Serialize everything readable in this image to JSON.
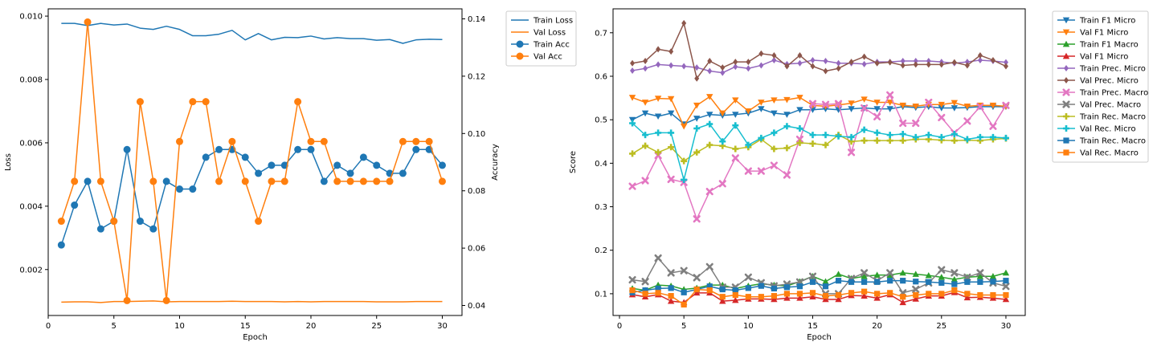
{
  "chart_data": [
    {
      "type": "line",
      "xlabel": "Epoch",
      "ylabel": "Loss",
      "y2label": "Accuracy",
      "xlim": [
        0,
        31.5
      ],
      "ylim": [
        0.00055,
        0.01023
      ],
      "y2lim": [
        0.0365,
        0.1435
      ],
      "xticks": [
        "0",
        "5",
        "10",
        "15",
        "20",
        "25",
        "30"
      ],
      "yticks": [
        "0.002",
        "0.004",
        "0.006",
        "0.008",
        "0.010"
      ],
      "y2ticks": [
        "0.04",
        "0.06",
        "0.08",
        "0.10",
        "0.12",
        "0.14"
      ],
      "legend_position": "upper right, outside plot",
      "x": [
        1,
        2,
        3,
        4,
        5,
        6,
        7,
        8,
        9,
        10,
        11,
        12,
        13,
        14,
        15,
        16,
        17,
        18,
        19,
        20,
        21,
        22,
        23,
        24,
        25,
        26,
        27,
        28,
        29,
        30
      ],
      "series": [
        {
          "name": "Train Loss",
          "axis": "left",
          "color": "#1f77b4",
          "marker": "none",
          "values": [
            0.00977,
            0.00977,
            0.0097,
            0.00977,
            0.00972,
            0.00975,
            0.00962,
            0.00958,
            0.00968,
            0.00958,
            0.00938,
            0.00938,
            0.00943,
            0.00955,
            0.00925,
            0.00945,
            0.00925,
            0.00933,
            0.00932,
            0.00937,
            0.00928,
            0.00932,
            0.00929,
            0.00929,
            0.00924,
            0.00926,
            0.00914,
            0.00925,
            0.00927,
            0.00926
          ]
        },
        {
          "name": "Val Loss",
          "axis": "left",
          "color": "#ff7f0e",
          "marker": "none",
          "values": [
            0.00097,
            0.00098,
            0.00098,
            0.00096,
            0.00099,
            0.00099,
            0.001,
            0.00101,
            0.00098,
            0.00099,
            0.00099,
            0.00099,
            0.00099,
            0.001,
            0.00099,
            0.00099,
            0.00099,
            0.00098,
            0.00099,
            0.00098,
            0.00099,
            0.00099,
            0.00099,
            0.00099,
            0.00098,
            0.00098,
            0.00098,
            0.00099,
            0.00099,
            0.00099
          ]
        },
        {
          "name": "Train Acc",
          "axis": "right",
          "color": "#1f77b4",
          "marker": "circle",
          "values": [
            0.0611,
            0.075,
            0.0833,
            0.0667,
            0.0694,
            0.0944,
            0.0694,
            0.0667,
            0.0833,
            0.0806,
            0.0806,
            0.0917,
            0.0944,
            0.0944,
            0.0917,
            0.0861,
            0.0889,
            0.0889,
            0.0944,
            0.0944,
            0.0833,
            0.0889,
            0.0861,
            0.0917,
            0.0889,
            0.0861,
            0.0861,
            0.0944,
            0.0944,
            0.0889
          ]
        },
        {
          "name": "Val Acc",
          "axis": "right",
          "color": "#ff7f0e",
          "marker": "circle",
          "values": [
            0.0694,
            0.0833,
            0.1389,
            0.0833,
            0.0694,
            0.0417,
            0.1111,
            0.0833,
            0.0417,
            0.0972,
            0.1111,
            0.1111,
            0.0833,
            0.0972,
            0.0833,
            0.0694,
            0.0833,
            0.0833,
            0.1111,
            0.0972,
            0.0972,
            0.0833,
            0.0833,
            0.0833,
            0.0833,
            0.0833,
            0.0972,
            0.0972,
            0.0972,
            0.0833
          ]
        }
      ]
    },
    {
      "type": "line",
      "xlabel": "Epoch",
      "ylabel": "Score",
      "xlim": [
        -0.5,
        31.5
      ],
      "ylim": [
        0.05,
        0.755
      ],
      "xticks": [
        "0",
        "5",
        "10",
        "15",
        "20",
        "25",
        "30"
      ],
      "yticks": [
        "0.1",
        "0.2",
        "0.3",
        "0.4",
        "0.5",
        "0.6",
        "0.7"
      ],
      "legend_position": "upper right, outside plot",
      "x": [
        1,
        2,
        3,
        4,
        5,
        6,
        7,
        8,
        9,
        10,
        11,
        12,
        13,
        14,
        15,
        16,
        17,
        18,
        19,
        20,
        21,
        22,
        23,
        24,
        25,
        26,
        27,
        28,
        29,
        30
      ],
      "series": [
        {
          "name": "Train F1 Micro",
          "color": "#1f77b4",
          "marker": "tri_down",
          "values": [
            0.5,
            0.515,
            0.508,
            0.515,
            0.49,
            0.503,
            0.512,
            0.51,
            0.512,
            0.515,
            0.525,
            0.515,
            0.512,
            0.523,
            0.523,
            0.525,
            0.523,
            0.525,
            0.527,
            0.525,
            0.525,
            0.53,
            0.528,
            0.53,
            0.527,
            0.527,
            0.528,
            0.53,
            0.53,
            0.53
          ]
        },
        {
          "name": "Val F1 Micro",
          "color": "#ff7f0e",
          "marker": "tri_down",
          "values": [
            0.551,
            0.54,
            0.549,
            0.548,
            0.485,
            0.533,
            0.553,
            0.515,
            0.545,
            0.52,
            0.54,
            0.545,
            0.546,
            0.551,
            0.533,
            0.531,
            0.534,
            0.538,
            0.547,
            0.54,
            0.54,
            0.533,
            0.531,
            0.535,
            0.535,
            0.539,
            0.531,
            0.533,
            0.533,
            0.531
          ]
        },
        {
          "name": "Train F1 Macro",
          "color": "#2ca02c",
          "marker": "tri_up",
          "values": [
            0.112,
            0.108,
            0.12,
            0.118,
            0.11,
            0.113,
            0.12,
            0.12,
            0.112,
            0.118,
            0.123,
            0.12,
            0.118,
            0.128,
            0.14,
            0.128,
            0.145,
            0.135,
            0.14,
            0.143,
            0.143,
            0.148,
            0.145,
            0.142,
            0.138,
            0.133,
            0.138,
            0.14,
            0.14,
            0.148
          ]
        },
        {
          "name": "Val F1 Micro",
          "color": "#d62728",
          "marker": "tri_up",
          "values": [
            0.098,
            0.093,
            0.098,
            0.083,
            0.08,
            0.102,
            0.102,
            0.083,
            0.085,
            0.088,
            0.088,
            0.087,
            0.09,
            0.09,
            0.093,
            0.087,
            0.087,
            0.096,
            0.095,
            0.09,
            0.098,
            0.08,
            0.088,
            0.095,
            0.095,
            0.103,
            0.091,
            0.092,
            0.09,
            0.087
          ]
        },
        {
          "name": "Train Prec. Micro",
          "color": "#9467bd",
          "marker": "diamond",
          "values": [
            0.613,
            0.618,
            0.627,
            0.625,
            0.623,
            0.62,
            0.612,
            0.608,
            0.622,
            0.618,
            0.625,
            0.637,
            0.628,
            0.63,
            0.637,
            0.635,
            0.63,
            0.63,
            0.628,
            0.633,
            0.633,
            0.635,
            0.635,
            0.635,
            0.633,
            0.63,
            0.633,
            0.637,
            0.635,
            0.632
          ]
        },
        {
          "name": "Val Prec. Micro",
          "color": "#8c564b",
          "marker": "diamond",
          "values": [
            0.63,
            0.635,
            0.662,
            0.657,
            0.722,
            0.595,
            0.635,
            0.62,
            0.633,
            0.633,
            0.652,
            0.648,
            0.623,
            0.648,
            0.623,
            0.612,
            0.618,
            0.633,
            0.645,
            0.63,
            0.632,
            0.625,
            0.627,
            0.627,
            0.627,
            0.632,
            0.625,
            0.648,
            0.637,
            0.623
          ]
        },
        {
          "name": "Train Prec. Macro",
          "color": "#e377c2",
          "marker": "x",
          "values": [
            0.347,
            0.36,
            0.418,
            0.363,
            0.356,
            0.272,
            0.335,
            0.353,
            0.412,
            0.382,
            0.382,
            0.395,
            0.373,
            0.455,
            0.537,
            0.535,
            0.537,
            0.425,
            0.527,
            0.507,
            0.557,
            0.492,
            0.492,
            0.54,
            0.505,
            0.47,
            0.497,
            0.53,
            0.485,
            0.533
          ]
        },
        {
          "name": "Val Prec. Macro",
          "color": "#7f7f7f",
          "marker": "x",
          "values": [
            0.132,
            0.128,
            0.182,
            0.148,
            0.153,
            0.137,
            0.162,
            0.115,
            0.115,
            0.138,
            0.125,
            0.118,
            0.122,
            0.127,
            0.14,
            0.1,
            0.1,
            0.135,
            0.148,
            0.13,
            0.148,
            0.102,
            0.11,
            0.125,
            0.155,
            0.148,
            0.138,
            0.148,
            0.125,
            0.117
          ]
        },
        {
          "name": "Train Rec. Macro",
          "color": "#bcbd22",
          "marker": "plus",
          "values": [
            0.422,
            0.44,
            0.425,
            0.437,
            0.405,
            0.425,
            0.442,
            0.44,
            0.433,
            0.437,
            0.455,
            0.433,
            0.435,
            0.447,
            0.445,
            0.442,
            0.465,
            0.45,
            0.452,
            0.452,
            0.452,
            0.452,
            0.455,
            0.455,
            0.453,
            0.452,
            0.453,
            0.452,
            0.455,
            0.457
          ]
        },
        {
          "name": "Val Rec. Micro",
          "color": "#17becf",
          "marker": "plus",
          "values": [
            0.492,
            0.465,
            0.47,
            0.47,
            0.362,
            0.48,
            0.49,
            0.45,
            0.487,
            0.442,
            0.458,
            0.47,
            0.485,
            0.48,
            0.465,
            0.465,
            0.462,
            0.46,
            0.477,
            0.47,
            0.465,
            0.467,
            0.46,
            0.465,
            0.46,
            0.467,
            0.455,
            0.46,
            0.46,
            0.458
          ]
        },
        {
          "name": "Train Rec. Macro",
          "color": "#1f77b4",
          "marker": "square",
          "values": [
            0.103,
            0.108,
            0.112,
            0.113,
            0.103,
            0.11,
            0.117,
            0.11,
            0.108,
            0.113,
            0.118,
            0.112,
            0.115,
            0.117,
            0.127,
            0.117,
            0.13,
            0.127,
            0.127,
            0.127,
            0.13,
            0.13,
            0.128,
            0.127,
            0.125,
            0.122,
            0.127,
            0.127,
            0.128,
            0.13
          ]
        },
        {
          "name": "Val Rec. Macro",
          "color": "#ff7f0e",
          "marker": "square",
          "values": [
            0.108,
            0.1,
            0.102,
            0.095,
            0.075,
            0.11,
            0.108,
            0.093,
            0.097,
            0.093,
            0.093,
            0.095,
            0.1,
            0.1,
            0.102,
            0.095,
            0.097,
            0.102,
            0.105,
            0.1,
            0.102,
            0.093,
            0.097,
            0.1,
            0.1,
            0.108,
            0.1,
            0.097,
            0.097,
            0.097
          ]
        }
      ]
    }
  ]
}
